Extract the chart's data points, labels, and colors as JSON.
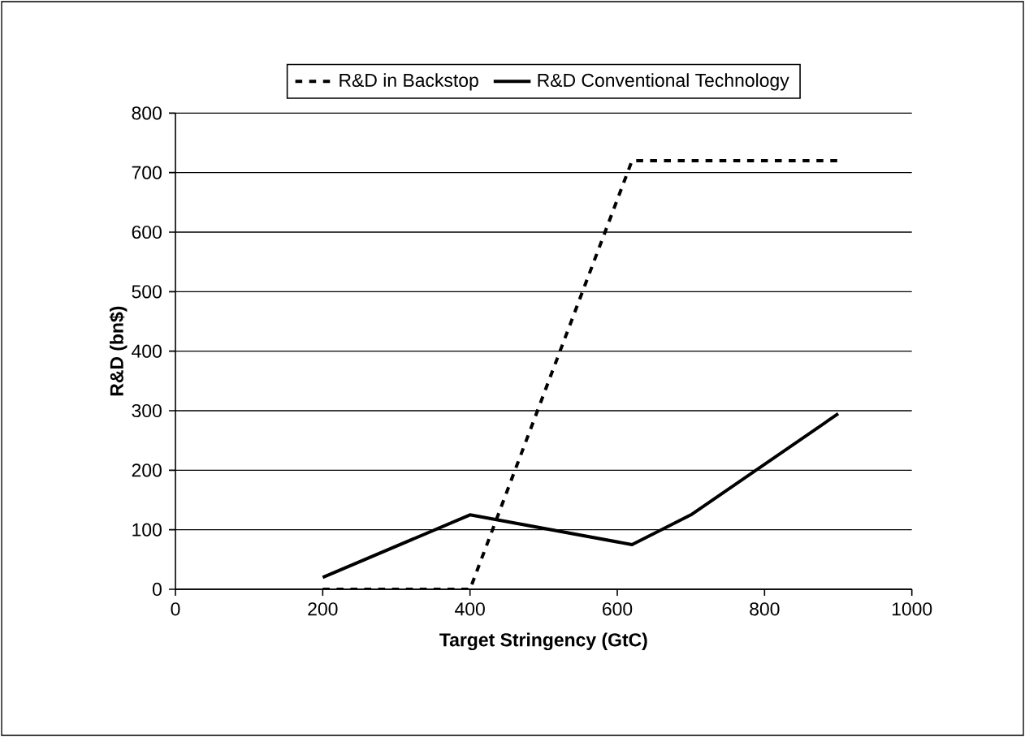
{
  "chart_data": {
    "type": "line",
    "xlabel": "Target Stringency (GtC)",
    "ylabel": "R&D (bn$)",
    "xlim": [
      0,
      1000
    ],
    "xticks": [
      0,
      200,
      400,
      600,
      800,
      1000
    ],
    "ylim": [
      0,
      800
    ],
    "yticks": [
      0,
      100,
      200,
      300,
      400,
      500,
      600,
      700,
      800
    ],
    "grid": "y",
    "legend": "top",
    "marker": "none",
    "series": [
      {
        "name": "R&D in Backstop",
        "color": "#000000",
        "line_style": "dashed",
        "x": [
          200,
          400,
          620,
          900
        ],
        "values": [
          0,
          0,
          720,
          720
        ]
      },
      {
        "name": "R&D Conventional Technology",
        "color": "#000000",
        "line_style": "solid",
        "x": [
          200,
          400,
          620,
          700,
          900
        ],
        "values": [
          20,
          125,
          75,
          125,
          295
        ]
      }
    ]
  }
}
